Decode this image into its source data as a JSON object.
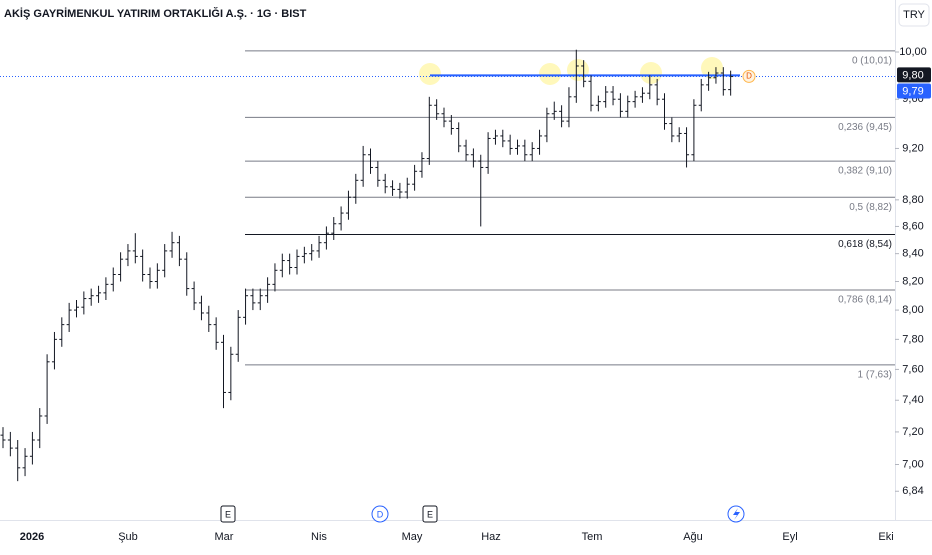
{
  "header": {
    "title": "AKİŞ GAYRİMENKUL YATIRIM ORTAKLIĞI A.Ş. · 1G · BIST",
    "currency": "TRY"
  },
  "chart_data": {
    "type": "ohlc",
    "log_scale": true,
    "color": "#131722",
    "ylim": [
      6.73,
      10.46
    ],
    "yticks": [
      {
        "value": 10,
        "label": "10,00"
      },
      {
        "value": 9.6,
        "label": "9,60"
      },
      {
        "value": 9.2,
        "label": "9,20"
      },
      {
        "value": 8.8,
        "label": "8,80"
      },
      {
        "value": 8.6,
        "label": "8,60"
      },
      {
        "value": 8.4,
        "label": "8,40"
      },
      {
        "value": 8.2,
        "label": "8,20"
      },
      {
        "value": 8,
        "label": "8,00"
      },
      {
        "value": 7.8,
        "label": "7,80"
      },
      {
        "value": 7.6,
        "label": "7,60"
      },
      {
        "value": 7.4,
        "label": "7,40"
      },
      {
        "value": 7.2,
        "label": "7,20"
      },
      {
        "value": 7,
        "label": "7,00"
      },
      {
        "value": 6.84,
        "label": "6,84"
      }
    ],
    "x_labels": [
      "2026",
      "Şub",
      "Mar",
      "Nis",
      "May",
      "Haz",
      "Tem",
      "Ağu",
      "Eyl",
      "Eki"
    ],
    "open": [
      7.18,
      7.15,
      7.1,
      6.98,
      7.05,
      7.15,
      7.3,
      7.65,
      7.8,
      7.9,
      8.0,
      8.02,
      8.08,
      8.1,
      8.12,
      8.18,
      8.25,
      8.36,
      8.42,
      8.38,
      8.25,
      8.2,
      8.28,
      8.42,
      8.48,
      8.36,
      8.15,
      8.05,
      7.98,
      7.9,
      7.78,
      7.45,
      7.7,
      7.95,
      8.1,
      8.05,
      8.1,
      8.18,
      8.28,
      8.35,
      8.3,
      8.38,
      8.4,
      8.42,
      8.48,
      8.55,
      8.62,
      8.7,
      8.82,
      8.95,
      9.15,
      9.05,
      8.95,
      8.9,
      8.88,
      8.86,
      8.92,
      9.02,
      9.12,
      9.55,
      9.48,
      9.42,
      9.36,
      9.22,
      9.15,
      9.1,
      9.05,
      9.28,
      9.3,
      9.26,
      9.2,
      9.22,
      9.15,
      9.2,
      9.3,
      9.48,
      9.5,
      9.42,
      9.62,
      9.88,
      9.75,
      9.55,
      9.58,
      9.66,
      9.6,
      9.5,
      9.58,
      9.62,
      9.65,
      9.72,
      9.6,
      9.4,
      9.3,
      9.32,
      9.15,
      9.55,
      9.72,
      9.78,
      9.82,
      9.68
    ],
    "high": [
      7.23,
      7.2,
      7.15,
      7.1,
      7.2,
      7.35,
      7.7,
      7.85,
      7.95,
      8.05,
      8.07,
      8.13,
      8.15,
      8.17,
      8.23,
      8.3,
      8.41,
      8.47,
      8.55,
      8.43,
      8.3,
      8.33,
      8.47,
      8.56,
      8.53,
      8.41,
      8.2,
      8.1,
      8.03,
      7.95,
      7.83,
      7.75,
      8.0,
      8.15,
      8.15,
      8.15,
      8.23,
      8.33,
      8.4,
      8.4,
      8.43,
      8.45,
      8.47,
      8.53,
      8.6,
      8.67,
      8.75,
      8.87,
      9.0,
      9.22,
      9.2,
      9.1,
      9.0,
      8.95,
      8.93,
      8.97,
      9.07,
      9.17,
      9.62,
      9.6,
      9.53,
      9.47,
      9.41,
      9.27,
      9.2,
      9.15,
      9.33,
      9.35,
      9.35,
      9.31,
      9.27,
      9.27,
      9.25,
      9.35,
      9.53,
      9.58,
      9.55,
      9.7,
      10.02,
      9.93,
      9.8,
      9.63,
      9.71,
      9.71,
      9.65,
      9.63,
      9.67,
      9.7,
      9.8,
      9.77,
      9.65,
      9.45,
      9.37,
      9.37,
      9.6,
      9.77,
      9.83,
      9.87,
      9.87,
      9.84
    ],
    "low": [
      7.1,
      7.05,
      6.9,
      6.93,
      7.0,
      7.1,
      7.25,
      7.6,
      7.75,
      7.85,
      7.95,
      7.97,
      8.03,
      8.05,
      8.07,
      8.13,
      8.2,
      8.31,
      8.33,
      8.2,
      8.15,
      8.15,
      8.23,
      8.37,
      8.31,
      8.1,
      8.0,
      7.93,
      7.85,
      7.73,
      7.35,
      7.4,
      7.65,
      7.9,
      8.0,
      8.0,
      8.05,
      8.13,
      8.23,
      8.25,
      8.25,
      8.33,
      8.35,
      8.37,
      8.43,
      8.5,
      8.57,
      8.65,
      8.77,
      8.9,
      9.0,
      8.9,
      8.85,
      8.83,
      8.81,
      8.81,
      8.87,
      8.97,
      9.07,
      9.43,
      9.37,
      9.31,
      9.17,
      9.1,
      9.05,
      8.6,
      9.0,
      9.23,
      9.21,
      9.15,
      9.15,
      9.1,
      9.1,
      9.15,
      9.25,
      9.43,
      9.37,
      9.37,
      9.57,
      9.7,
      9.5,
      9.5,
      9.53,
      9.55,
      9.45,
      9.45,
      9.53,
      9.57,
      9.6,
      9.55,
      9.35,
      9.25,
      9.25,
      9.05,
      9.1,
      9.5,
      9.67,
      9.73,
      9.63,
      9.63
    ],
    "close": [
      7.15,
      7.1,
      6.98,
      7.05,
      7.15,
      7.3,
      7.65,
      7.8,
      7.9,
      8.0,
      8.02,
      8.08,
      8.1,
      8.12,
      8.18,
      8.25,
      8.36,
      8.42,
      8.38,
      8.25,
      8.2,
      8.28,
      8.42,
      8.48,
      8.36,
      8.15,
      8.05,
      7.98,
      7.9,
      7.78,
      7.45,
      7.7,
      7.95,
      8.1,
      8.05,
      8.1,
      8.18,
      8.28,
      8.35,
      8.3,
      8.38,
      8.4,
      8.42,
      8.48,
      8.55,
      8.62,
      8.7,
      8.82,
      8.95,
      9.15,
      9.05,
      8.95,
      8.9,
      8.88,
      8.86,
      8.92,
      9.02,
      9.12,
      9.55,
      9.48,
      9.42,
      9.36,
      9.22,
      9.15,
      9.1,
      9.05,
      9.28,
      9.3,
      9.26,
      9.2,
      9.22,
      9.15,
      9.2,
      9.3,
      9.48,
      9.5,
      9.42,
      9.62,
      9.88,
      9.75,
      9.55,
      9.58,
      9.66,
      9.6,
      9.5,
      9.58,
      9.62,
      9.65,
      9.72,
      9.6,
      9.4,
      9.3,
      9.32,
      9.15,
      9.55,
      9.72,
      9.78,
      9.82,
      9.68,
      9.79
    ],
    "fib_levels": [
      {
        "value": 10.01,
        "label": "0 (10,01)"
      },
      {
        "value": 9.45,
        "label": "0,236 (9,45)"
      },
      {
        "value": 9.1,
        "label": "0,382 (9,10)"
      },
      {
        "value": 8.82,
        "label": "0,5 (8,82)"
      },
      {
        "value": 8.54,
        "label": "0,618 (8,54)"
      },
      {
        "value": 8.14,
        "label": "0,786 (8,14)"
      },
      {
        "value": 7.63,
        "label": "1 (7,63)"
      }
    ],
    "horizontal_line": {
      "value": 9.8,
      "label": "9,80",
      "color": "#2962ff"
    },
    "last_price": {
      "value": 9.79,
      "label": "9,79",
      "color": "#2962ff"
    },
    "events": [
      "E",
      "D",
      "E"
    ],
    "flag_label": "D"
  }
}
